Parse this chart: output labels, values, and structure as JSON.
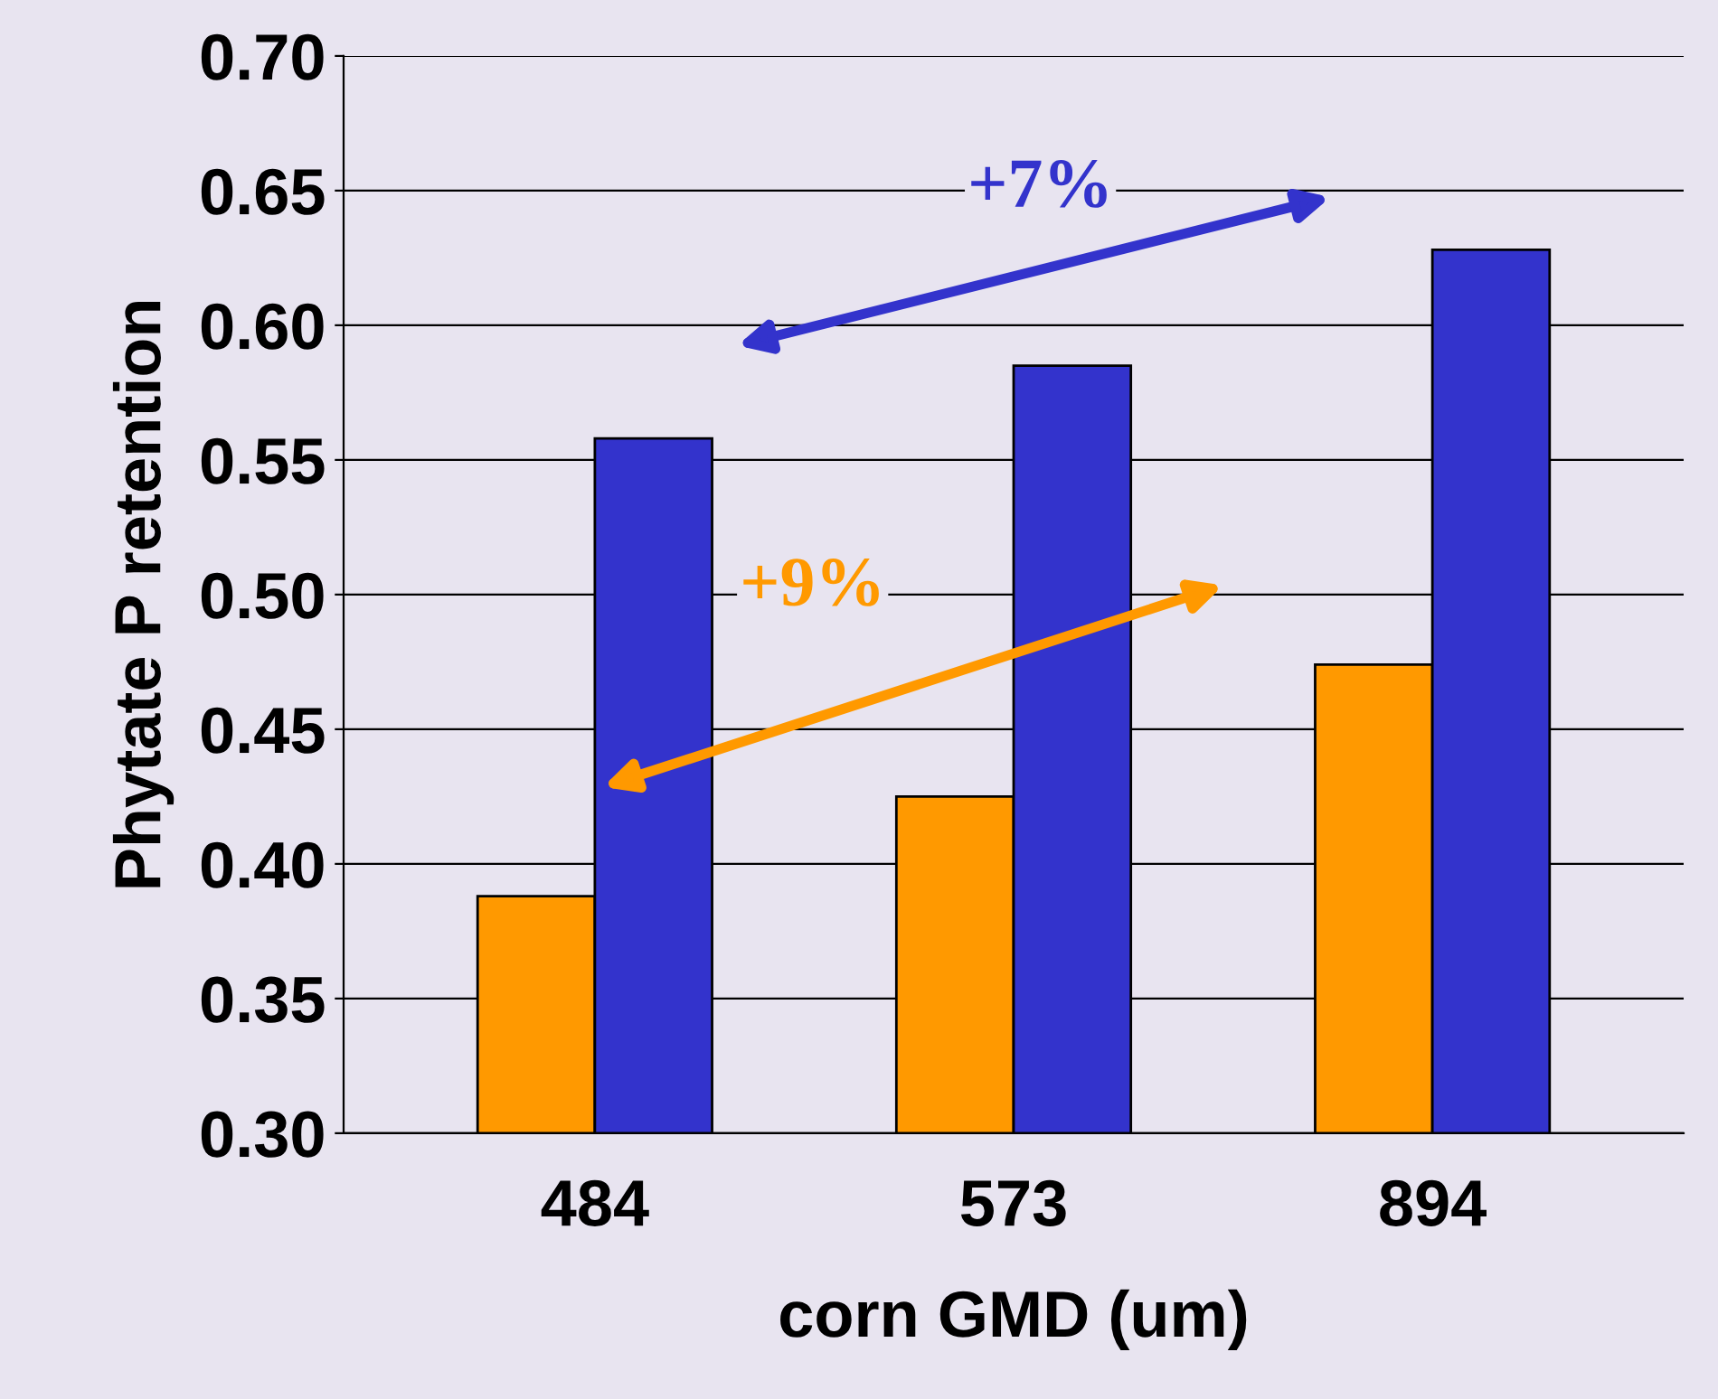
{
  "chart_data": {
    "type": "bar",
    "xlabel": "corn GMD (um)",
    "ylabel": "Phytate P retention",
    "categories": [
      "484",
      "573",
      "894"
    ],
    "series": [
      {
        "color": "#ff9900",
        "values": [
          0.388,
          0.425,
          0.474
        ]
      },
      {
        "color": "#3333cc",
        "values": [
          0.558,
          0.585,
          0.628
        ]
      }
    ],
    "ylim": [
      0.3,
      0.7
    ],
    "yticks": [
      {
        "value": 0.3,
        "label": "0.30"
      },
      {
        "value": 0.35,
        "label": "0.35"
      },
      {
        "value": 0.4,
        "label": "0.40"
      },
      {
        "value": 0.45,
        "label": "0.45"
      },
      {
        "value": 0.5,
        "label": "0.50"
      },
      {
        "value": 0.55,
        "label": "0.55"
      },
      {
        "value": 0.6,
        "label": "0.60"
      },
      {
        "value": 0.65,
        "label": "0.65"
      },
      {
        "value": 0.7,
        "label": "0.70"
      }
    ],
    "grid": "y",
    "annotations": [
      "+7%",
      "+9%"
    ]
  }
}
